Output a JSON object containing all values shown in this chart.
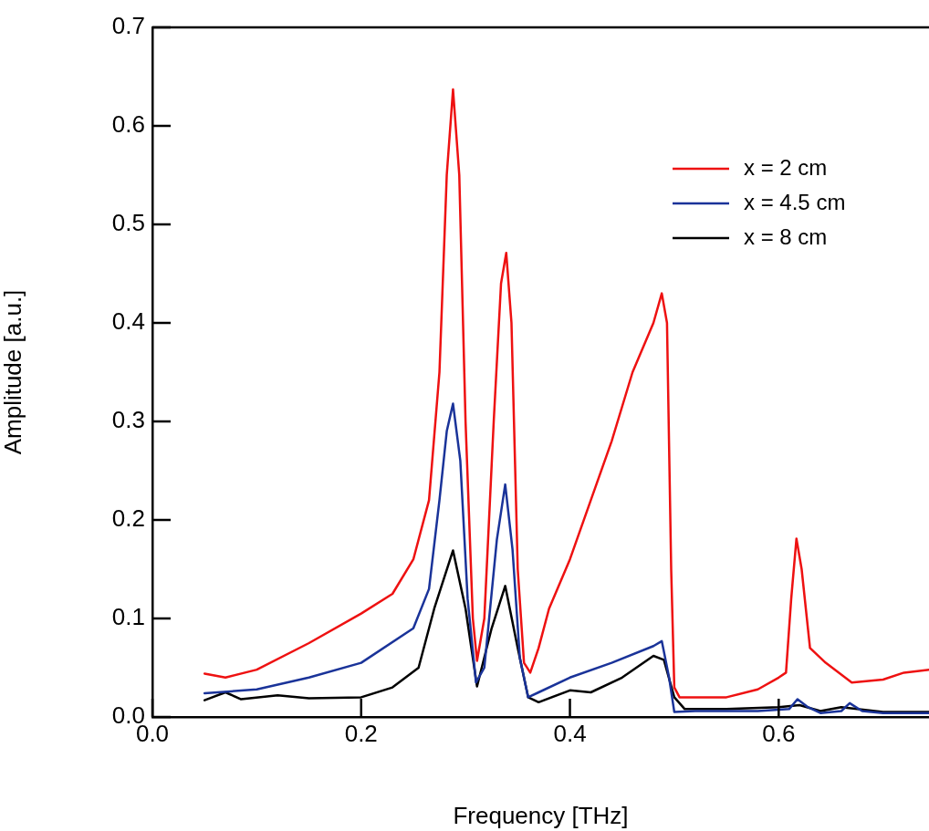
{
  "chart_data": {
    "type": "line",
    "xlabel": "Frequency [THz]",
    "ylabel": "Amplitude [a.u.]",
    "xlim": [
      0,
      0.744
    ],
    "xticks": [
      {
        "value": 0,
        "label": "0.0"
      },
      0.2,
      0.4,
      0.6
    ],
    "ylim": [
      0,
      0.7
    ],
    "yticks": [
      {
        "value": 0,
        "label": "0.0"
      },
      0.1,
      0.2,
      0.3,
      0.4,
      0.5,
      0.6,
      0.7
    ],
    "grid": false,
    "legend": "top right",
    "marker": "none",
    "line_style": "solid",
    "series": [
      {
        "name": "x = 2 cm",
        "color": "#ee1111",
        "x": [
          0.05,
          0.07,
          0.1,
          0.15,
          0.2,
          0.23,
          0.25,
          0.265,
          0.275,
          0.282,
          0.288,
          0.294,
          0.3,
          0.307,
          0.311,
          0.318,
          0.327,
          0.334,
          0.339,
          0.344,
          0.35,
          0.356,
          0.362,
          0.37,
          0.38,
          0.4,
          0.42,
          0.44,
          0.46,
          0.48,
          0.488,
          0.493,
          0.497,
          0.5,
          0.505,
          0.55,
          0.58,
          0.6,
          0.607,
          0.612,
          0.617,
          0.622,
          0.63,
          0.645,
          0.67,
          0.7,
          0.72,
          0.744
        ],
        "values": [
          0.044,
          0.04,
          0.048,
          0.075,
          0.105,
          0.125,
          0.16,
          0.22,
          0.35,
          0.55,
          0.637,
          0.55,
          0.3,
          0.1,
          0.057,
          0.1,
          0.3,
          0.44,
          0.471,
          0.4,
          0.15,
          0.055,
          0.045,
          0.07,
          0.11,
          0.16,
          0.22,
          0.28,
          0.35,
          0.4,
          0.43,
          0.4,
          0.15,
          0.03,
          0.02,
          0.02,
          0.028,
          0.04,
          0.045,
          0.12,
          0.181,
          0.15,
          0.07,
          0.055,
          0.035,
          0.038,
          0.045,
          0.048
        ]
      },
      {
        "name": "x = 4.5 cm",
        "color": "#1a3399",
        "x": [
          0.05,
          0.1,
          0.15,
          0.2,
          0.25,
          0.265,
          0.275,
          0.282,
          0.288,
          0.295,
          0.302,
          0.31,
          0.318,
          0.33,
          0.338,
          0.345,
          0.352,
          0.36,
          0.37,
          0.4,
          0.44,
          0.48,
          0.488,
          0.495,
          0.5,
          0.52,
          0.58,
          0.61,
          0.618,
          0.628,
          0.64,
          0.66,
          0.668,
          0.68,
          0.7,
          0.744
        ],
        "values": [
          0.024,
          0.028,
          0.04,
          0.055,
          0.09,
          0.13,
          0.22,
          0.29,
          0.318,
          0.26,
          0.12,
          0.035,
          0.05,
          0.18,
          0.236,
          0.17,
          0.06,
          0.02,
          0.025,
          0.04,
          0.055,
          0.072,
          0.077,
          0.04,
          0.005,
          0.006,
          0.006,
          0.008,
          0.018,
          0.01,
          0.004,
          0.006,
          0.014,
          0.006,
          0.004,
          0.004
        ]
      },
      {
        "name": "x = 8 cm",
        "color": "#000000",
        "x": [
          0.05,
          0.07,
          0.085,
          0.12,
          0.15,
          0.2,
          0.23,
          0.255,
          0.27,
          0.288,
          0.3,
          0.311,
          0.325,
          0.338,
          0.35,
          0.36,
          0.37,
          0.4,
          0.42,
          0.45,
          0.48,
          0.49,
          0.5,
          0.51,
          0.55,
          0.6,
          0.62,
          0.64,
          0.66,
          0.7,
          0.744
        ],
        "values": [
          0.017,
          0.025,
          0.018,
          0.022,
          0.019,
          0.02,
          0.03,
          0.05,
          0.11,
          0.169,
          0.11,
          0.031,
          0.09,
          0.133,
          0.07,
          0.02,
          0.015,
          0.027,
          0.025,
          0.04,
          0.062,
          0.058,
          0.02,
          0.008,
          0.008,
          0.01,
          0.012,
          0.006,
          0.01,
          0.005,
          0.005
        ]
      }
    ]
  }
}
